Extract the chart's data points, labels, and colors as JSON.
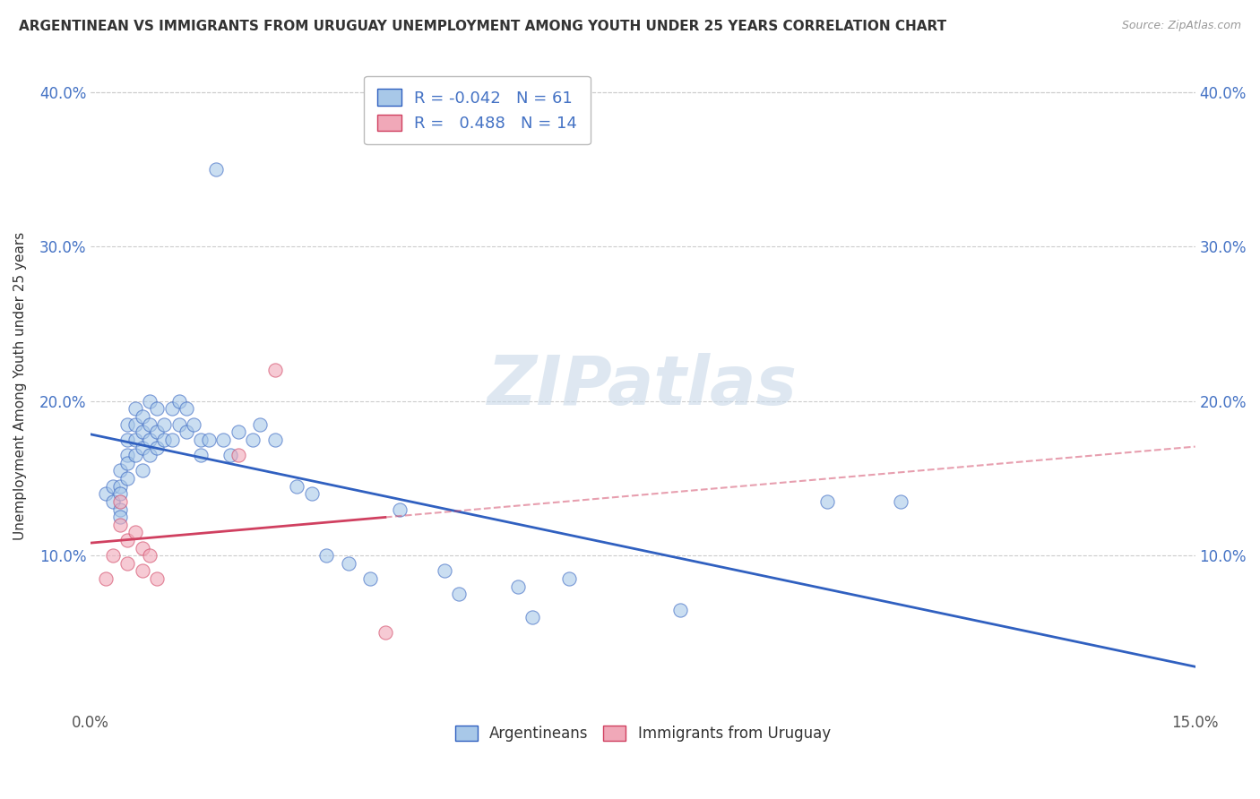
{
  "title": "ARGENTINEAN VS IMMIGRANTS FROM URUGUAY UNEMPLOYMENT AMONG YOUTH UNDER 25 YEARS CORRELATION CHART",
  "source": "Source: ZipAtlas.com",
  "ylabel": "Unemployment Among Youth under 25 years",
  "xlim": [
    0.0,
    0.15
  ],
  "ylim": [
    0.0,
    0.42
  ],
  "blue_color": "#a8c8e8",
  "pink_color": "#f0a8b8",
  "blue_line_color": "#3060c0",
  "pink_line_color": "#d04060",
  "pink_dash_color": "#d04060",
  "argentineans_x": [
    0.002,
    0.003,
    0.003,
    0.004,
    0.004,
    0.004,
    0.004,
    0.004,
    0.005,
    0.005,
    0.005,
    0.005,
    0.005,
    0.006,
    0.006,
    0.006,
    0.006,
    0.007,
    0.007,
    0.007,
    0.007,
    0.008,
    0.008,
    0.008,
    0.008,
    0.009,
    0.009,
    0.009,
    0.01,
    0.01,
    0.011,
    0.011,
    0.012,
    0.012,
    0.013,
    0.013,
    0.014,
    0.015,
    0.015,
    0.016,
    0.017,
    0.018,
    0.019,
    0.02,
    0.022,
    0.023,
    0.025,
    0.028,
    0.03,
    0.032,
    0.035,
    0.038,
    0.042,
    0.048,
    0.05,
    0.058,
    0.06,
    0.065,
    0.08,
    0.1,
    0.11
  ],
  "argentineans_y": [
    0.14,
    0.145,
    0.135,
    0.155,
    0.145,
    0.14,
    0.13,
    0.125,
    0.185,
    0.175,
    0.165,
    0.16,
    0.15,
    0.195,
    0.185,
    0.175,
    0.165,
    0.19,
    0.18,
    0.17,
    0.155,
    0.2,
    0.185,
    0.175,
    0.165,
    0.195,
    0.18,
    0.17,
    0.185,
    0.175,
    0.195,
    0.175,
    0.2,
    0.185,
    0.195,
    0.18,
    0.185,
    0.175,
    0.165,
    0.175,
    0.35,
    0.175,
    0.165,
    0.18,
    0.175,
    0.185,
    0.175,
    0.145,
    0.14,
    0.1,
    0.095,
    0.085,
    0.13,
    0.09,
    0.075,
    0.08,
    0.06,
    0.085,
    0.065,
    0.135,
    0.135
  ],
  "uruguayans_x": [
    0.002,
    0.003,
    0.004,
    0.004,
    0.005,
    0.005,
    0.006,
    0.007,
    0.007,
    0.008,
    0.009,
    0.02,
    0.025,
    0.04
  ],
  "uruguayans_y": [
    0.085,
    0.1,
    0.135,
    0.12,
    0.11,
    0.095,
    0.115,
    0.105,
    0.09,
    0.1,
    0.085,
    0.165,
    0.22,
    0.05
  ]
}
